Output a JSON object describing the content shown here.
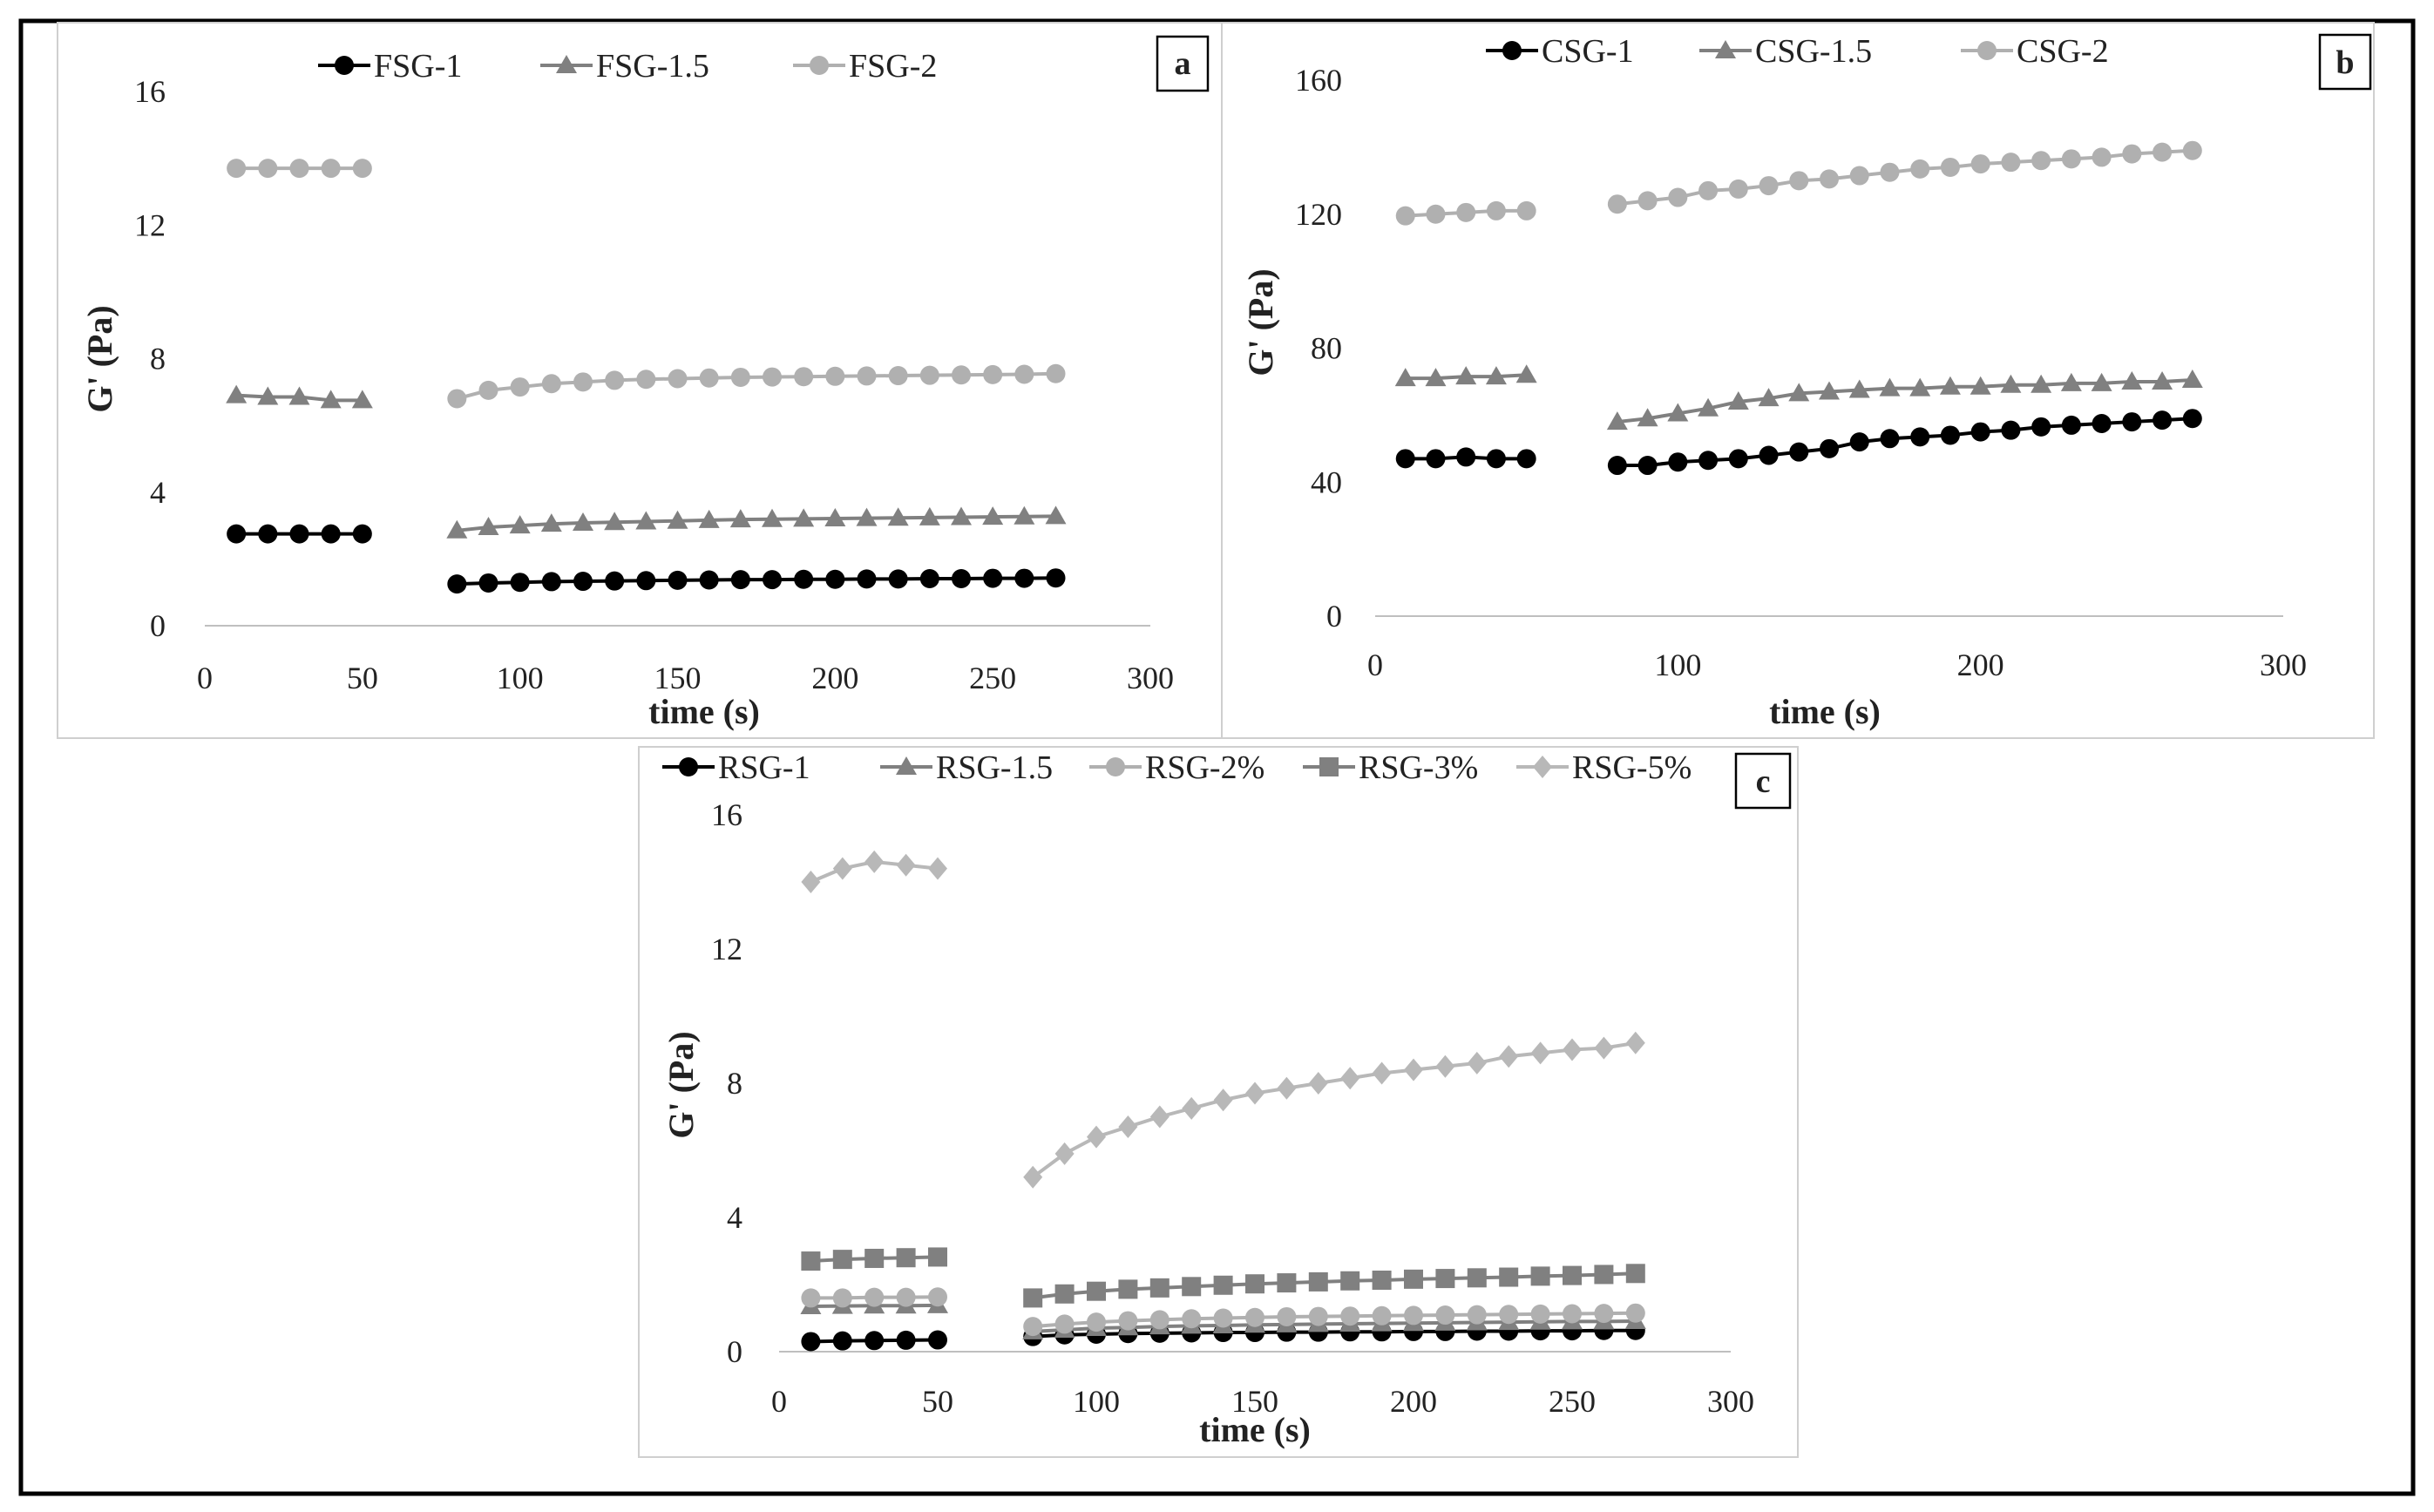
{
  "chart_data": [
    {
      "panel": "a",
      "type": "line",
      "xlabel": "time (s)",
      "ylabel": "G' (Pa)",
      "xlim": [
        0,
        300
      ],
      "ylim": [
        0,
        16
      ],
      "xticks": [
        "0",
        "50",
        "100",
        "150",
        "200",
        "250",
        "300"
      ],
      "yticks": [
        "0",
        "4",
        "8",
        "12",
        "16"
      ],
      "legend": [
        "FSG-1",
        "FSG-1.5",
        "FSG-2"
      ],
      "series": [
        {
          "name": "FSG-1",
          "color": "#000000",
          "marker": "circle",
          "segments": [
            {
              "x": [
                10,
                20,
                30,
                40,
                50
              ],
              "y": [
                2.75,
                2.75,
                2.75,
                2.75,
                2.75
              ]
            },
            {
              "x": [
                80,
                90,
                100,
                110,
                120,
                130,
                140,
                150,
                160,
                170,
                180,
                190,
                200,
                210,
                220,
                230,
                240,
                250,
                260,
                270
              ],
              "y": [
                1.25,
                1.28,
                1.3,
                1.32,
                1.33,
                1.34,
                1.35,
                1.36,
                1.37,
                1.38,
                1.38,
                1.39,
                1.39,
                1.4,
                1.4,
                1.41,
                1.41,
                1.42,
                1.42,
                1.43
              ]
            }
          ]
        },
        {
          "name": "FSG-1.5",
          "color": "#808080",
          "marker": "triangle",
          "segments": [
            {
              "x": [
                10,
                20,
                30,
                40,
                50
              ],
              "y": [
                6.9,
                6.85,
                6.85,
                6.75,
                6.75
              ]
            },
            {
              "x": [
                80,
                90,
                100,
                110,
                120,
                130,
                140,
                150,
                160,
                170,
                180,
                190,
                200,
                210,
                220,
                230,
                240,
                250,
                260,
                270
              ],
              "y": [
                2.85,
                2.95,
                3.0,
                3.05,
                3.08,
                3.1,
                3.12,
                3.14,
                3.16,
                3.18,
                3.19,
                3.2,
                3.21,
                3.22,
                3.23,
                3.24,
                3.25,
                3.26,
                3.27,
                3.28
              ]
            }
          ]
        },
        {
          "name": "FSG-2",
          "color": "#b0b0b0",
          "marker": "circle",
          "segments": [
            {
              "x": [
                10,
                20,
                30,
                40,
                50
              ],
              "y": [
                13.7,
                13.7,
                13.7,
                13.7,
                13.7
              ]
            },
            {
              "x": [
                80,
                90,
                100,
                110,
                120,
                130,
                140,
                150,
                160,
                170,
                180,
                190,
                200,
                210,
                220,
                230,
                240,
                250,
                260,
                270
              ],
              "y": [
                6.8,
                7.05,
                7.15,
                7.25,
                7.3,
                7.35,
                7.38,
                7.4,
                7.42,
                7.44,
                7.45,
                7.46,
                7.47,
                7.48,
                7.49,
                7.5,
                7.51,
                7.52,
                7.53,
                7.55
              ]
            }
          ]
        }
      ]
    },
    {
      "panel": "b",
      "type": "line",
      "xlabel": "time (s)",
      "ylabel": "G' (Pa)",
      "xlim": [
        0,
        300
      ],
      "ylim": [
        0,
        160
      ],
      "xticks": [
        "0",
        "100",
        "200",
        "300"
      ],
      "yticks": [
        "0",
        "40",
        "80",
        "120",
        "160"
      ],
      "legend": [
        "CSG-1",
        "CSG-1.5",
        "CSG-2"
      ],
      "series": [
        {
          "name": "CSG-1",
          "color": "#000000",
          "marker": "circle",
          "segments": [
            {
              "x": [
                10,
                20,
                30,
                40,
                50
              ],
              "y": [
                47,
                47,
                47.5,
                47,
                47
              ]
            },
            {
              "x": [
                80,
                90,
                100,
                110,
                120,
                130,
                140,
                150,
                160,
                170,
                180,
                190,
                200,
                210,
                220,
                230,
                240,
                250,
                260,
                270
              ],
              "y": [
                45,
                45,
                46,
                46.5,
                47,
                48,
                49,
                50,
                52,
                53,
                53.5,
                54,
                55,
                55.5,
                56.5,
                57,
                57.5,
                58,
                58.5,
                59
              ]
            }
          ]
        },
        {
          "name": "CSG-1.5",
          "color": "#808080",
          "marker": "triangle",
          "segments": [
            {
              "x": [
                10,
                20,
                30,
                40,
                50
              ],
              "y": [
                71,
                71,
                71.5,
                71.5,
                72
              ]
            },
            {
              "x": [
                80,
                90,
                100,
                110,
                120,
                130,
                140,
                150,
                160,
                170,
                180,
                190,
                200,
                210,
                220,
                230,
                240,
                250,
                260,
                270
              ],
              "y": [
                58,
                59,
                60.5,
                62,
                64,
                65,
                66.5,
                67,
                67.5,
                68,
                68,
                68.5,
                68.5,
                69,
                69,
                69.5,
                69.5,
                70,
                70,
                70.5
              ]
            }
          ]
        },
        {
          "name": "CSG-2",
          "color": "#b0b0b0",
          "marker": "circle",
          "segments": [
            {
              "x": [
                10,
                20,
                30,
                40,
                50
              ],
              "y": [
                119.5,
                120,
                120.5,
                121,
                121
              ]
            },
            {
              "x": [
                80,
                90,
                100,
                110,
                120,
                130,
                140,
                150,
                160,
                170,
                180,
                190,
                200,
                210,
                220,
                230,
                240,
                250,
                260,
                270
              ],
              "y": [
                123,
                124,
                125,
                127,
                127.5,
                128.5,
                130,
                130.5,
                131.5,
                132.5,
                133.5,
                134,
                135,
                135.5,
                136,
                136.5,
                137,
                138,
                138.5,
                139
              ]
            }
          ]
        }
      ]
    },
    {
      "panel": "c",
      "type": "line",
      "xlabel": "time (s)",
      "ylabel": "G' (Pa)",
      "xlim": [
        0,
        300
      ],
      "ylim": [
        0,
        16
      ],
      "xticks": [
        "0",
        "50",
        "100",
        "150",
        "200",
        "250",
        "300"
      ],
      "yticks": [
        "0",
        "4",
        "8",
        "12",
        "16"
      ],
      "legend": [
        "RSG-1",
        "RSG-1.5",
        "RSG-2%",
        "RSG-3%",
        "RSG-5%"
      ],
      "series": [
        {
          "name": "RSG-1",
          "color": "#000000",
          "marker": "circle",
          "segments": [
            {
              "x": [
                10,
                20,
                30,
                40,
                50
              ],
              "y": [
                0.3,
                0.32,
                0.33,
                0.34,
                0.35
              ]
            },
            {
              "x": [
                80,
                90,
                100,
                110,
                120,
                130,
                140,
                150,
                160,
                170,
                180,
                190,
                200,
                210,
                220,
                230,
                240,
                250,
                260,
                270
              ],
              "y": [
                0.45,
                0.5,
                0.52,
                0.54,
                0.55,
                0.56,
                0.57,
                0.57,
                0.58,
                0.58,
                0.59,
                0.59,
                0.6,
                0.6,
                0.61,
                0.61,
                0.62,
                0.62,
                0.63,
                0.63
              ]
            }
          ]
        },
        {
          "name": "RSG-1.5",
          "color": "#808080",
          "marker": "triangle",
          "segments": [
            {
              "x": [
                10,
                20,
                30,
                40,
                50
              ],
              "y": [
                1.35,
                1.36,
                1.37,
                1.37,
                1.38
              ]
            },
            {
              "x": [
                80,
                90,
                100,
                110,
                120,
                130,
                140,
                150,
                160,
                170,
                180,
                190,
                200,
                210,
                220,
                230,
                240,
                250,
                260,
                270
              ],
              "y": [
                0.6,
                0.65,
                0.7,
                0.72,
                0.75,
                0.77,
                0.78,
                0.8,
                0.81,
                0.82,
                0.83,
                0.84,
                0.85,
                0.86,
                0.87,
                0.88,
                0.89,
                0.9,
                0.9,
                0.91
              ]
            }
          ]
        },
        {
          "name": "RSG-2%",
          "color": "#b0b0b0",
          "marker": "circle",
          "segments": [
            {
              "x": [
                10,
                20,
                30,
                40,
                50
              ],
              "y": [
                1.6,
                1.6,
                1.62,
                1.62,
                1.63
              ]
            },
            {
              "x": [
                80,
                90,
                100,
                110,
                120,
                130,
                140,
                150,
                160,
                170,
                180,
                190,
                200,
                210,
                220,
                230,
                240,
                250,
                260,
                270
              ],
              "y": [
                0.75,
                0.82,
                0.88,
                0.92,
                0.95,
                0.98,
                1.0,
                1.02,
                1.04,
                1.05,
                1.06,
                1.07,
                1.08,
                1.09,
                1.1,
                1.11,
                1.12,
                1.13,
                1.14,
                1.15
              ]
            }
          ]
        },
        {
          "name": "RSG-3%",
          "color": "#808080",
          "marker": "square",
          "segments": [
            {
              "x": [
                10,
                20,
                30,
                40,
                50
              ],
              "y": [
                2.7,
                2.75,
                2.78,
                2.8,
                2.82
              ]
            },
            {
              "x": [
                80,
                90,
                100,
                110,
                120,
                130,
                140,
                150,
                160,
                170,
                180,
                190,
                200,
                210,
                220,
                230,
                240,
                250,
                260,
                270
              ],
              "y": [
                1.6,
                1.72,
                1.8,
                1.86,
                1.9,
                1.94,
                1.98,
                2.02,
                2.05,
                2.08,
                2.11,
                2.13,
                2.16,
                2.18,
                2.2,
                2.22,
                2.25,
                2.27,
                2.3,
                2.33
              ]
            }
          ]
        },
        {
          "name": "RSG-5%",
          "color": "#b8b8b8",
          "marker": "diamond",
          "segments": [
            {
              "x": [
                10,
                20,
                30,
                40,
                50
              ],
              "y": [
                14.0,
                14.4,
                14.6,
                14.5,
                14.4
              ]
            },
            {
              "x": [
                80,
                90,
                100,
                110,
                120,
                130,
                140,
                150,
                160,
                170,
                180,
                190,
                200,
                210,
                220,
                230,
                240,
                250,
                260,
                270
              ],
              "y": [
                5.2,
                5.9,
                6.4,
                6.7,
                7.0,
                7.25,
                7.5,
                7.7,
                7.85,
                8.0,
                8.15,
                8.3,
                8.4,
                8.5,
                8.6,
                8.8,
                8.9,
                9.0,
                9.05,
                9.2
              ]
            }
          ]
        }
      ]
    }
  ]
}
